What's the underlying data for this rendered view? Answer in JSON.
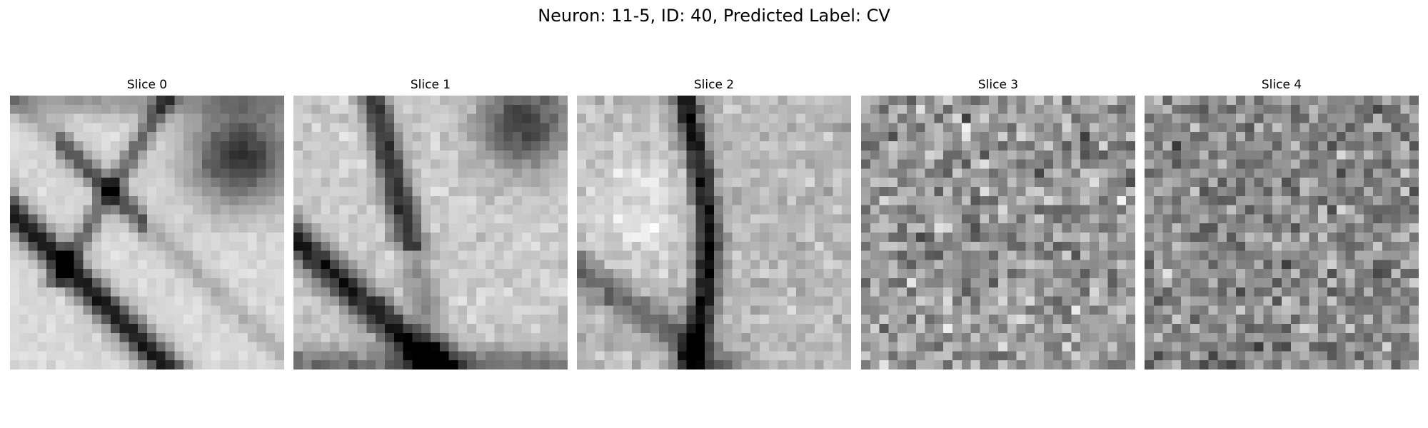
{
  "figure": {
    "title": "Neuron: 11-5, ID: 40, Predicted Label: CV",
    "colormap": "gray",
    "background": "#ffffff"
  },
  "slices": [
    {
      "label": "Slice 0",
      "content": "grayscale microscopy patch, smooth membranes with dark diagonal band bottom-left and dark region top-right"
    },
    {
      "label": "Slice 1",
      "content": "grayscale microscopy patch, bright left region with dark curved boundary, textured right side"
    },
    {
      "label": "Slice 2",
      "content": "grayscale microscopy patch, dark vertical membrane through center, bright regions either side"
    },
    {
      "label": "Slice 3",
      "content": "grayscale noisy patch, high-frequency texture with no clear structure"
    },
    {
      "label": "Slice 4",
      "content": "grayscale noisy patch, high-frequency texture with faint dark spots"
    }
  ]
}
